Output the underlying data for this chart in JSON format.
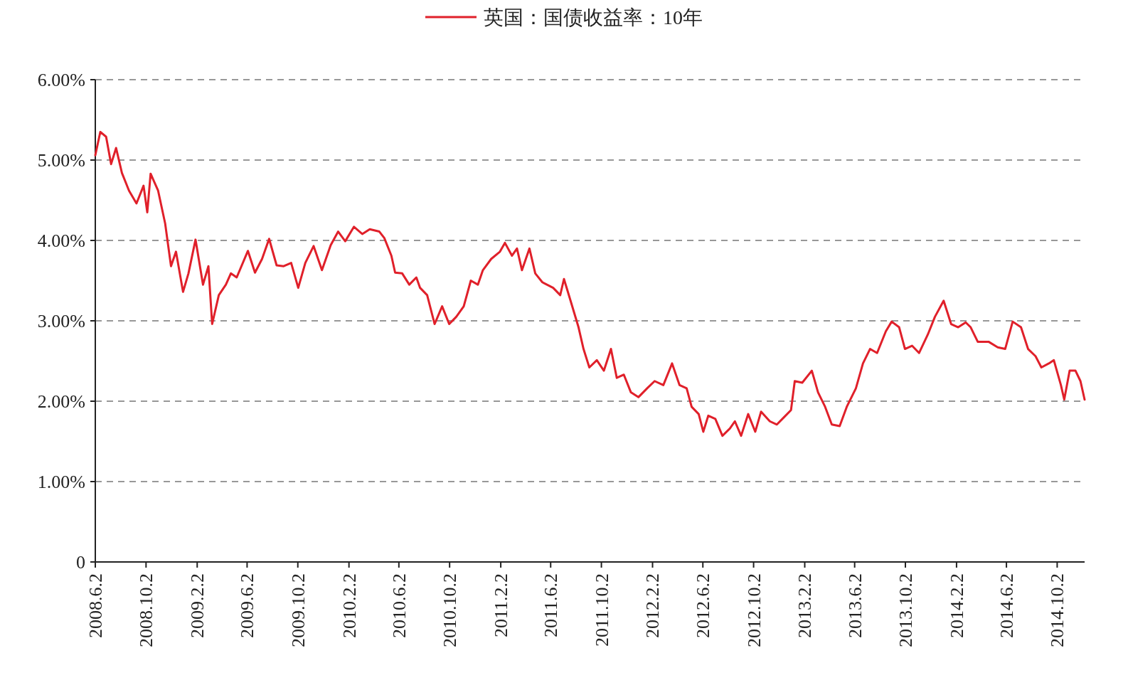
{
  "chart_data": {
    "type": "line",
    "xlim": [
      "2008-06-02",
      "2014-12-07"
    ],
    "ylim": [
      0,
      6
    ],
    "xticks": [
      {
        "value": "2008-06-02",
        "label": "2008.6.2"
      },
      {
        "value": "2008-10-02",
        "label": "2008.10.2"
      },
      {
        "value": "2009-02-02",
        "label": "2009.2.2"
      },
      {
        "value": "2009-06-02",
        "label": "2009.6.2"
      },
      {
        "value": "2009-10-02",
        "label": "2009.10.2"
      },
      {
        "value": "2010-02-02",
        "label": "2010.2.2"
      },
      {
        "value": "2010-06-02",
        "label": "2010.6.2"
      },
      {
        "value": "2010-10-02",
        "label": "2010.10.2"
      },
      {
        "value": "2011-02-02",
        "label": "2011.2.2"
      },
      {
        "value": "2011-06-02",
        "label": "2011.6.2"
      },
      {
        "value": "2011-10-02",
        "label": "2011.10.2"
      },
      {
        "value": "2012-02-02",
        "label": "2012.2.2"
      },
      {
        "value": "2012-06-02",
        "label": "2012.6.2"
      },
      {
        "value": "2012-10-02",
        "label": "2012.10.2"
      },
      {
        "value": "2013-02-02",
        "label": "2013.2.2"
      },
      {
        "value": "2013-06-02",
        "label": "2013.6.2"
      },
      {
        "value": "2013-10-02",
        "label": "2013.10.2"
      },
      {
        "value": "2014-02-02",
        "label": "2014.2.2"
      },
      {
        "value": "2014-06-02",
        "label": "2014.6.2"
      },
      {
        "value": "2014-10-02",
        "label": "2014.10.2"
      }
    ],
    "yticks": [
      0,
      {
        "value": 1,
        "label": "1.00%"
      },
      {
        "value": 2,
        "label": "2.00%"
      },
      {
        "value": 3,
        "label": "3.00%"
      },
      {
        "value": 4,
        "label": "4.00%"
      },
      {
        "value": 5,
        "label": "5.00%"
      },
      {
        "value": 6,
        "label": "6.00%"
      }
    ],
    "grid": "y",
    "legend": "top",
    "x": [
      "2008-06-02",
      "2008-06-14",
      "2008-06-28",
      "2008-07-10",
      "2008-07-22",
      "2008-08-05",
      "2008-08-22",
      "2008-09-09",
      "2008-09-26",
      "2008-10-05",
      "2008-10-13",
      "2008-10-31",
      "2008-11-17",
      "2008-12-01",
      "2008-12-13",
      "2008-12-30",
      "2009-01-12",
      "2009-01-29",
      "2009-02-16",
      "2009-03-01",
      "2009-03-10",
      "2009-03-26",
      "2009-04-12",
      "2009-04-24",
      "2009-05-08",
      "2009-06-04",
      "2009-06-21",
      "2009-07-08",
      "2009-07-25",
      "2009-08-12",
      "2009-08-29",
      "2009-09-16",
      "2009-10-03",
      "2009-10-20",
      "2009-11-09",
      "2009-11-29",
      "2009-12-20",
      "2010-01-07",
      "2010-01-24",
      "2010-02-14",
      "2010-03-06",
      "2010-03-24",
      "2010-04-16",
      "2010-04-28",
      "2010-05-15",
      "2010-05-24",
      "2010-06-10",
      "2010-06-27",
      "2010-07-14",
      "2010-07-23",
      "2010-08-09",
      "2010-08-27",
      "2010-09-14",
      "2010-10-01",
      "2010-10-18",
      "2010-11-05",
      "2010-11-22",
      "2010-12-09",
      "2010-12-21",
      "2011-01-10",
      "2011-01-31",
      "2011-02-12",
      "2011-03-01",
      "2011-03-13",
      "2011-03-25",
      "2011-04-12",
      "2011-04-26",
      "2011-05-13",
      "2011-06-08",
      "2011-06-25",
      "2011-07-04",
      "2011-07-21",
      "2011-08-08",
      "2011-08-20",
      "2011-09-03",
      "2011-09-21",
      "2011-10-08",
      "2011-10-25",
      "2011-11-08",
      "2011-11-25",
      "2011-12-12",
      "2011-12-30",
      "2012-01-20",
      "2012-02-07",
      "2012-02-28",
      "2012-03-20",
      "2012-04-07",
      "2012-04-24",
      "2012-05-06",
      "2012-05-23",
      "2012-06-03",
      "2012-06-15",
      "2012-07-02",
      "2012-07-19",
      "2012-08-06",
      "2012-08-18",
      "2012-09-02",
      "2012-09-19",
      "2012-10-06",
      "2012-10-20",
      "2012-11-10",
      "2012-11-27",
      "2012-12-14",
      "2012-12-31",
      "2013-01-09",
      "2013-01-27",
      "2013-02-19",
      "2013-03-06",
      "2013-03-23",
      "2013-04-08",
      "2013-04-27",
      "2013-05-14",
      "2013-06-05",
      "2013-06-22",
      "2013-07-09",
      "2013-07-26",
      "2013-08-16",
      "2013-08-30",
      "2013-09-17",
      "2013-10-01",
      "2013-10-18",
      "2013-11-04",
      "2013-11-25",
      "2013-12-12",
      "2014-01-02",
      "2014-01-20",
      "2014-02-06",
      "2014-02-24",
      "2014-03-08",
      "2014-03-25",
      "2014-04-20",
      "2014-05-12",
      "2014-05-30",
      "2014-06-17",
      "2014-07-07",
      "2014-07-24",
      "2014-08-11",
      "2014-08-25",
      "2014-09-12",
      "2014-09-24",
      "2014-10-11",
      "2014-10-19",
      "2014-11-01",
      "2014-11-15",
      "2014-11-27",
      "2014-12-07"
    ],
    "series": [
      {
        "name": "英国：国债收益率：10年",
        "color": "#e0202a",
        "values": [
          5.06,
          5.35,
          5.29,
          4.95,
          5.15,
          4.84,
          4.62,
          4.46,
          4.68,
          4.35,
          4.83,
          4.62,
          4.21,
          3.68,
          3.86,
          3.36,
          3.59,
          4.01,
          3.45,
          3.68,
          2.96,
          3.32,
          3.45,
          3.59,
          3.54,
          3.87,
          3.6,
          3.77,
          4.02,
          3.69,
          3.68,
          3.72,
          3.41,
          3.72,
          3.93,
          3.63,
          3.94,
          4.11,
          3.99,
          4.17,
          4.08,
          4.14,
          4.11,
          4.03,
          3.81,
          3.6,
          3.59,
          3.45,
          3.54,
          3.41,
          3.32,
          2.96,
          3.18,
          2.96,
          3.05,
          3.18,
          3.5,
          3.45,
          3.63,
          3.77,
          3.86,
          3.97,
          3.81,
          3.9,
          3.63,
          3.9,
          3.59,
          3.48,
          3.41,
          3.32,
          3.52,
          3.23,
          2.92,
          2.65,
          2.42,
          2.51,
          2.38,
          2.65,
          2.29,
          2.33,
          2.11,
          2.05,
          2.16,
          2.25,
          2.2,
          2.47,
          2.2,
          2.16,
          1.93,
          1.84,
          1.62,
          1.82,
          1.78,
          1.57,
          1.66,
          1.75,
          1.57,
          1.84,
          1.62,
          1.87,
          1.75,
          1.71,
          1.8,
          1.89,
          2.25,
          2.23,
          2.38,
          2.11,
          1.93,
          1.71,
          1.69,
          1.93,
          2.16,
          2.47,
          2.65,
          2.6,
          2.87,
          2.99,
          2.92,
          2.65,
          2.69,
          2.6,
          2.83,
          3.05,
          3.25,
          2.96,
          2.92,
          2.98,
          2.92,
          2.74,
          2.74,
          2.67,
          2.65,
          2.99,
          2.92,
          2.65,
          2.56,
          2.42,
          2.47,
          2.51,
          2.2,
          2.02,
          2.38,
          2.38,
          2.25,
          2.02
        ]
      }
    ]
  }
}
